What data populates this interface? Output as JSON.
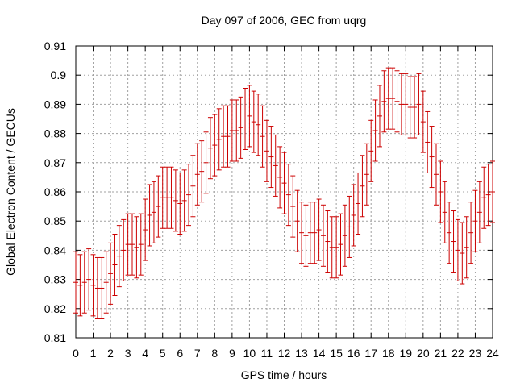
{
  "chart_data": {
    "type": "scatter",
    "title": "Day 097 of 2006, GEC from uqrg",
    "xlabel": "GPS time / hours",
    "ylabel": "Global Electron Content / GECUs",
    "xlim": [
      0,
      24
    ],
    "ylim": [
      0.81,
      0.91
    ],
    "grid": true,
    "x_ticks": [
      0,
      1,
      2,
      3,
      4,
      5,
      6,
      7,
      8,
      9,
      10,
      11,
      12,
      13,
      14,
      15,
      16,
      17,
      18,
      19,
      20,
      21,
      22,
      23,
      24
    ],
    "x_tick_labels": [
      "0",
      "1",
      "2",
      "3",
      "4",
      "5",
      "6",
      "7",
      "8",
      "9",
      "10",
      "11",
      "12",
      "13",
      "14",
      "15",
      "16",
      "17",
      "18",
      "19",
      "20",
      "21",
      "22",
      "23",
      "24"
    ],
    "y_ticks": [
      0.81,
      0.82,
      0.83,
      0.84,
      0.85,
      0.86,
      0.87,
      0.88,
      0.89,
      0.9,
      0.91
    ],
    "y_tick_labels": [
      "0.81",
      "0.82",
      "0.83",
      "0.84",
      "0.85",
      "0.86",
      "0.87",
      "0.88",
      "0.89",
      "0.9",
      "0.91"
    ],
    "series": [
      {
        "name": "GEC",
        "color": "#cc0000",
        "error": 0.0105,
        "x": [
          0,
          0.25,
          0.5,
          0.75,
          1,
          1.25,
          1.5,
          1.75,
          2,
          2.25,
          2.5,
          2.75,
          3,
          3.25,
          3.5,
          3.75,
          4,
          4.25,
          4.5,
          4.75,
          5,
          5.25,
          5.5,
          5.75,
          6,
          6.25,
          6.5,
          6.75,
          7,
          7.25,
          7.5,
          7.75,
          8,
          8.25,
          8.5,
          8.75,
          9,
          9.25,
          9.5,
          9.75,
          10,
          10.25,
          10.5,
          10.75,
          11,
          11.25,
          11.5,
          11.75,
          12,
          12.25,
          12.5,
          12.75,
          13,
          13.25,
          13.5,
          13.75,
          14,
          14.25,
          14.5,
          14.75,
          15,
          15.25,
          15.5,
          15.75,
          16,
          16.25,
          16.5,
          16.75,
          17,
          17.25,
          17.5,
          17.75,
          18,
          18.25,
          18.5,
          18.75,
          19,
          19.25,
          19.5,
          19.75,
          20,
          20.25,
          20.5,
          20.75,
          21,
          21.25,
          21.5,
          21.75,
          22,
          22.25,
          22.5,
          22.75,
          23,
          23.25,
          23.5,
          23.75,
          24
        ],
        "y": [
          0.829,
          0.828,
          0.829,
          0.83,
          0.828,
          0.827,
          0.827,
          0.829,
          0.832,
          0.835,
          0.838,
          0.84,
          0.842,
          0.842,
          0.841,
          0.842,
          0.847,
          0.852,
          0.853,
          0.855,
          0.858,
          0.858,
          0.858,
          0.857,
          0.856,
          0.857,
          0.859,
          0.862,
          0.866,
          0.867,
          0.87,
          0.875,
          0.876,
          0.878,
          0.879,
          0.879,
          0.881,
          0.881,
          0.882,
          0.885,
          0.886,
          0.884,
          0.883,
          0.879,
          0.874,
          0.872,
          0.869,
          0.865,
          0.863,
          0.859,
          0.855,
          0.85,
          0.846,
          0.845,
          0.846,
          0.846,
          0.847,
          0.845,
          0.843,
          0.841,
          0.841,
          0.842,
          0.845,
          0.848,
          0.852,
          0.856,
          0.862,
          0.866,
          0.874,
          0.881,
          0.886,
          0.891,
          0.892,
          0.892,
          0.891,
          0.89,
          0.89,
          0.889,
          0.889,
          0.89,
          0.884,
          0.877,
          0.872,
          0.866,
          0.86,
          0.853,
          0.846,
          0.843,
          0.84,
          0.839,
          0.841,
          0.846,
          0.85,
          0.853,
          0.858,
          0.859,
          0.86
        ]
      }
    ]
  }
}
